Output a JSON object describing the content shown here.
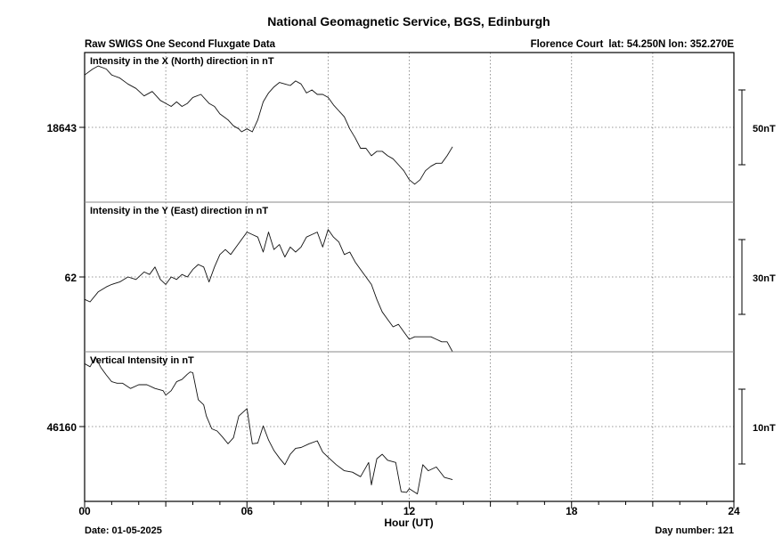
{
  "chart_data": {
    "type": "line",
    "title": "National Geomagnetic Service, BGS, Edinburgh",
    "subtitle_left": "Raw SWIGS One Second Fluxgate Data",
    "station": "Florence Court",
    "station_coords": "lat: 54.250N lon: 352.270E",
    "xlabel": "Hour (UT)",
    "x_tick_labels": [
      "00",
      "06",
      "12",
      "18",
      "24"
    ],
    "xlim": [
      0,
      24
    ],
    "date_text": "Date: 01-05-2025",
    "day_number_text": "Day number:  121",
    "grid": true,
    "panels": [
      {
        "name": "Intensity in the X (North) direction in nT",
        "center_label": "18643",
        "center_value": 18643,
        "scale_label": "50nT",
        "scale_nT": 50,
        "x": [
          0.0,
          0.3,
          0.5,
          0.8,
          1.0,
          1.3,
          1.6,
          1.9,
          2.2,
          2.5,
          2.8,
          3.0,
          3.2,
          3.4,
          3.6,
          3.8,
          4.0,
          4.3,
          4.6,
          4.8,
          5.0,
          5.3,
          5.5,
          5.7,
          5.8,
          6.0,
          6.2,
          6.4,
          6.6,
          6.8,
          7.0,
          7.2,
          7.4,
          7.6,
          7.8,
          8.0,
          8.2,
          8.4,
          8.6,
          8.8,
          9.0,
          9.2,
          9.4,
          9.6,
          9.8,
          10.0,
          10.2,
          10.4,
          10.6,
          10.8,
          11.0,
          11.2,
          11.4,
          11.6,
          11.8,
          12.0,
          12.2,
          12.4,
          12.6,
          12.8,
          13.0,
          13.2,
          13.4,
          13.6
        ],
        "y": [
          18678,
          18682,
          18684,
          18682,
          18678,
          18676,
          18672,
          18669,
          18664,
          18667,
          18661,
          18659,
          18657,
          18660,
          18657,
          18659,
          18663,
          18665,
          18659,
          18657,
          18652,
          18648,
          18644,
          18642,
          18640,
          18642,
          18640,
          18648,
          18660,
          18666,
          18670,
          18673,
          18672,
          18671,
          18674,
          18672,
          18666,
          18668,
          18665,
          18665,
          18663,
          18658,
          18654,
          18650,
          18642,
          18636,
          18629,
          18629,
          18624,
          18627,
          18627,
          18624,
          18622,
          18618,
          18614,
          18608,
          18605,
          18608,
          18614,
          18617,
          18619,
          18619,
          18624,
          18630
        ]
      },
      {
        "name": "Intensity in the Y (East) direction in nT",
        "center_label": "62",
        "center_value": 62,
        "scale_label": "30nT",
        "scale_nT": 30,
        "x": [
          0.0,
          0.2,
          0.5,
          0.8,
          1.0,
          1.3,
          1.6,
          1.9,
          2.2,
          2.4,
          2.6,
          2.8,
          3.0,
          3.2,
          3.4,
          3.6,
          3.8,
          4.0,
          4.2,
          4.4,
          4.6,
          4.8,
          5.0,
          5.2,
          5.4,
          5.6,
          5.8,
          6.0,
          6.2,
          6.4,
          6.6,
          6.8,
          7.0,
          7.2,
          7.4,
          7.6,
          7.8,
          8.0,
          8.2,
          8.4,
          8.6,
          8.8,
          9.0,
          9.2,
          9.4,
          9.6,
          9.8,
          10.0,
          10.2,
          10.4,
          10.6,
          10.8,
          11.0,
          11.2,
          11.4,
          11.6,
          11.8,
          12.0,
          12.2,
          12.4,
          12.6,
          12.8,
          13.0,
          13.2,
          13.4,
          13.6
        ],
        "y": [
          53,
          52,
          56,
          58,
          59,
          60,
          62,
          61,
          64,
          63,
          66,
          61,
          59,
          62,
          61,
          63,
          62,
          65,
          67,
          66,
          60,
          66,
          71,
          73,
          71,
          74,
          77,
          80,
          79,
          78,
          72,
          80,
          73,
          75,
          70,
          74,
          72,
          74,
          78,
          79,
          80,
          74,
          81,
          78,
          76,
          71,
          72,
          68,
          65,
          62,
          59,
          53,
          48,
          45,
          42,
          43,
          40,
          37,
          38,
          38,
          38,
          38,
          37,
          36,
          36,
          32
        ]
      },
      {
        "name": "Vertical Intensity in nT",
        "center_label": "46160",
        "center_value": 46160,
        "scale_label": "10nT",
        "scale_nT": 10,
        "x": [
          0.0,
          0.2,
          0.4,
          0.6,
          0.8,
          1.0,
          1.2,
          1.4,
          1.7,
          2.0,
          2.3,
          2.6,
          2.9,
          3.0,
          3.2,
          3.4,
          3.6,
          3.8,
          3.9,
          4.0,
          4.2,
          4.4,
          4.5,
          4.7,
          4.9,
          5.1,
          5.3,
          5.5,
          5.7,
          6.0,
          6.2,
          6.4,
          6.6,
          6.8,
          7.0,
          7.2,
          7.4,
          7.6,
          7.8,
          8.0,
          8.3,
          8.6,
          8.8,
          9.0,
          9.3,
          9.6,
          9.9,
          10.2,
          10.5,
          10.6,
          10.8,
          11.0,
          11.2,
          11.5,
          11.7,
          11.9,
          12.0,
          12.3,
          12.5,
          12.7,
          13.0,
          13.3,
          13.6
        ],
        "y": [
          46168.4,
          46168.0,
          46169.3,
          46167.9,
          46166.9,
          46166.0,
          46165.8,
          46165.8,
          46165.1,
          46165.6,
          46165.6,
          46165.1,
          46164.8,
          46164.2,
          46164.8,
          46166.0,
          46166.3,
          46167.0,
          46167.3,
          46167.2,
          46163.6,
          46162.9,
          46161.4,
          46159.7,
          46159.4,
          46158.6,
          46157.7,
          46158.5,
          46161.4,
          46162.4,
          46157.7,
          46157.8,
          46160.1,
          46158.2,
          46156.8,
          46155.8,
          46154.9,
          46156.3,
          46157.1,
          46157.2,
          46157.7,
          46158.1,
          46156.6,
          46155.9,
          46154.9,
          46154.1,
          46153.9,
          46153.3,
          46155.2,
          46152.2,
          46155.7,
          46156.3,
          46155.5,
          46155.2,
          46151.3,
          46151.2,
          46151.7,
          46151.0,
          46154.9,
          46154.1,
          46154.6,
          46153.2,
          46152.9
        ]
      }
    ]
  }
}
